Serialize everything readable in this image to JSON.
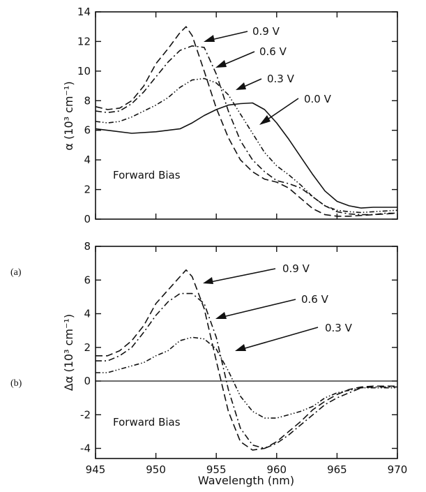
{
  "chart_data": [
    {
      "panel": "(a)",
      "type": "line",
      "ylabel": "α (10³ cm⁻¹)",
      "xlabel": "",
      "xlim": [
        945,
        970
      ],
      "ylim": [
        0,
        14
      ],
      "xticks": [
        945,
        950,
        955,
        960,
        965,
        970
      ],
      "yticks": [
        0,
        2,
        4,
        6,
        8,
        10,
        12,
        14
      ],
      "annotation_text": "Forward Bias",
      "grid": false,
      "series": [
        {
          "name": "0.0 V",
          "style": "solid",
          "x": [
            945,
            946,
            948,
            950,
            952,
            953,
            954,
            955,
            956,
            957,
            958,
            959,
            960,
            961,
            962,
            963,
            964,
            965,
            966,
            967,
            968,
            969,
            970
          ],
          "y": [
            6.1,
            6.0,
            5.8,
            5.9,
            6.1,
            6.5,
            7.0,
            7.4,
            7.7,
            7.8,
            7.85,
            7.4,
            6.5,
            5.4,
            4.2,
            3.0,
            1.9,
            1.2,
            0.9,
            0.75,
            0.8,
            0.8,
            0.8
          ]
        },
        {
          "name": "0.3 V",
          "style": "dash-dot-dot",
          "x": [
            945,
            946,
            947,
            948,
            949,
            950,
            951,
            952,
            953,
            954,
            955,
            956,
            957,
            958,
            959,
            960,
            961,
            962,
            963,
            964,
            965,
            966,
            967,
            968,
            969,
            970
          ],
          "y": [
            6.6,
            6.5,
            6.6,
            6.9,
            7.3,
            7.7,
            8.2,
            8.9,
            9.4,
            9.5,
            9.2,
            8.4,
            7.1,
            5.8,
            4.5,
            3.6,
            3.0,
            2.3,
            1.5,
            0.9,
            0.6,
            0.5,
            0.45,
            0.5,
            0.55,
            0.6
          ]
        },
        {
          "name": "0.6 V",
          "style": "dash-dot",
          "x": [
            945,
            946,
            947,
            948,
            949,
            950,
            951,
            952,
            953,
            954,
            955,
            956,
            957,
            958,
            959,
            960,
            961,
            962,
            963,
            964,
            965,
            966,
            967,
            968,
            969,
            970
          ],
          "y": [
            7.3,
            7.2,
            7.3,
            7.8,
            8.6,
            9.6,
            10.6,
            11.4,
            11.7,
            11.6,
            9.8,
            7.3,
            5.3,
            4.0,
            3.2,
            2.6,
            2.4,
            2.1,
            1.5,
            0.9,
            0.5,
            0.35,
            0.3,
            0.3,
            0.4,
            0.4
          ]
        },
        {
          "name": "0.9 V",
          "style": "dashed",
          "x": [
            945,
            946,
            947,
            948,
            949,
            950,
            951,
            952,
            952.5,
            953,
            954,
            955,
            956,
            957,
            958,
            959,
            960,
            961,
            962,
            963,
            964,
            965,
            966,
            967,
            968,
            969,
            970
          ],
          "y": [
            7.6,
            7.4,
            7.5,
            8.0,
            9.0,
            10.5,
            11.5,
            12.6,
            13.0,
            12.4,
            10.0,
            7.5,
            5.5,
            4.0,
            3.2,
            2.7,
            2.5,
            2.1,
            1.4,
            0.7,
            0.3,
            0.2,
            0.2,
            0.25,
            0.3,
            0.35,
            0.4
          ]
        }
      ]
    },
    {
      "panel": "(b)",
      "type": "line",
      "ylabel": "Δα (10³ cm⁻¹)",
      "xlabel": "Wavelength (nm)",
      "xlim": [
        945,
        970
      ],
      "ylim": [
        -4.6,
        8
      ],
      "xticks": [
        945,
        950,
        955,
        960,
        965,
        970
      ],
      "yticks": [
        -4,
        -2,
        0,
        2,
        4,
        6,
        8
      ],
      "annotation_text": "Forward Bias",
      "grid": false,
      "series": [
        {
          "name": "0.3 V",
          "style": "dash-dot-dot",
          "x": [
            945,
            946,
            947,
            948,
            949,
            950,
            951,
            952,
            953,
            954,
            955,
            956,
            957,
            958,
            959,
            960,
            961,
            962,
            963,
            964,
            965,
            966,
            967,
            968,
            969,
            970
          ],
          "y": [
            0.5,
            0.5,
            0.7,
            0.9,
            1.1,
            1.5,
            1.8,
            2.4,
            2.6,
            2.5,
            1.9,
            0.6,
            -0.9,
            -1.8,
            -2.2,
            -2.2,
            -2.0,
            -1.8,
            -1.5,
            -1.0,
            -0.7,
            -0.55,
            -0.4,
            -0.4,
            -0.4,
            -0.4
          ]
        },
        {
          "name": "0.6 V",
          "style": "dash-dot",
          "x": [
            945,
            946,
            947,
            948,
            949,
            950,
            951,
            952,
            953,
            954,
            955,
            956,
            957,
            958,
            959,
            960,
            961,
            962,
            963,
            964,
            965,
            966,
            967,
            968,
            969,
            970
          ],
          "y": [
            1.2,
            1.2,
            1.5,
            2.0,
            2.9,
            3.9,
            4.7,
            5.2,
            5.2,
            4.6,
            2.6,
            -0.5,
            -2.8,
            -3.8,
            -4.0,
            -3.7,
            -3.2,
            -2.6,
            -2.0,
            -1.4,
            -1.0,
            -0.7,
            -0.4,
            -0.35,
            -0.35,
            -0.35
          ]
        },
        {
          "name": "0.9 V",
          "style": "dashed",
          "x": [
            945,
            946,
            947,
            948,
            949,
            950,
            951,
            952,
            952.5,
            953,
            954,
            955,
            956,
            957,
            958,
            959,
            960,
            961,
            962,
            963,
            964,
            965,
            966,
            967,
            968,
            969,
            970
          ],
          "y": [
            1.5,
            1.5,
            1.8,
            2.4,
            3.3,
            4.6,
            5.4,
            6.2,
            6.6,
            6.2,
            4.3,
            1.2,
            -1.8,
            -3.6,
            -4.1,
            -4.0,
            -3.6,
            -3.0,
            -2.4,
            -1.7,
            -1.2,
            -0.8,
            -0.5,
            -0.35,
            -0.3,
            -0.3,
            -0.3
          ]
        }
      ]
    }
  ],
  "annotations": {
    "a": [
      "0.9 V",
      "0.6 V",
      "0.3 V",
      "0.0 V"
    ],
    "b": [
      "0.9 V",
      "0.6 V",
      "0.3 V"
    ]
  },
  "styles": {
    "solid": "",
    "dashed": "10 5",
    "dash-dot": "9 4 2 4",
    "dash-dot-dot": "7 3 1.5 3 1.5 3"
  }
}
